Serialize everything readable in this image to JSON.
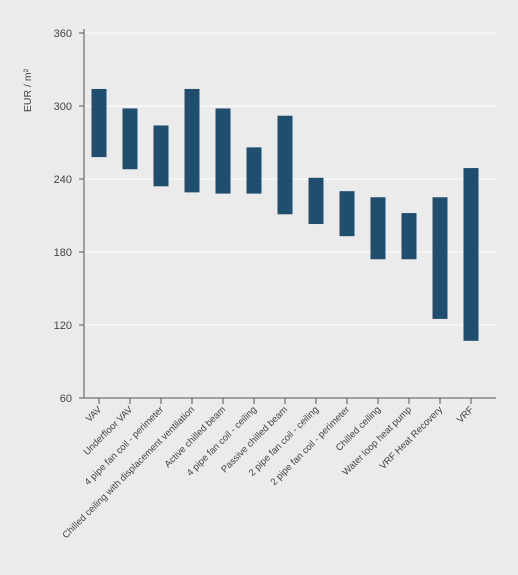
{
  "chart_data": {
    "type": "bar",
    "subtype": "floating-range",
    "title": "",
    "xlabel": "",
    "ylabel": "EUR / m²",
    "ylim": [
      60,
      360
    ],
    "yticks": [
      60,
      120,
      180,
      240,
      300,
      360
    ],
    "grid": "horizontal",
    "bar_color": "#1f4e6e",
    "categories": [
      "VAV",
      "Underfloor VAV",
      "4 pipe fan coil - perimeter",
      "Chilled ceiling with displacement ventilation",
      "Active chilled beam",
      "4 pipe fan coil - ceiling",
      "Passive chilled beam",
      "2 pipe fan coil - ceiling",
      "2 pipe fan coil - perimeter",
      "Chilled ceiling",
      "Water loop heat pump",
      "VRF Heat Recovery",
      "VRF"
    ],
    "series": [
      {
        "low": [
          258,
          248,
          234,
          229,
          228,
          228,
          211,
          203,
          193,
          174,
          174,
          125,
          107
        ],
        "high": [
          314,
          298,
          284,
          314,
          298,
          266,
          292,
          241,
          230,
          225,
          212,
          225,
          249
        ]
      }
    ]
  }
}
